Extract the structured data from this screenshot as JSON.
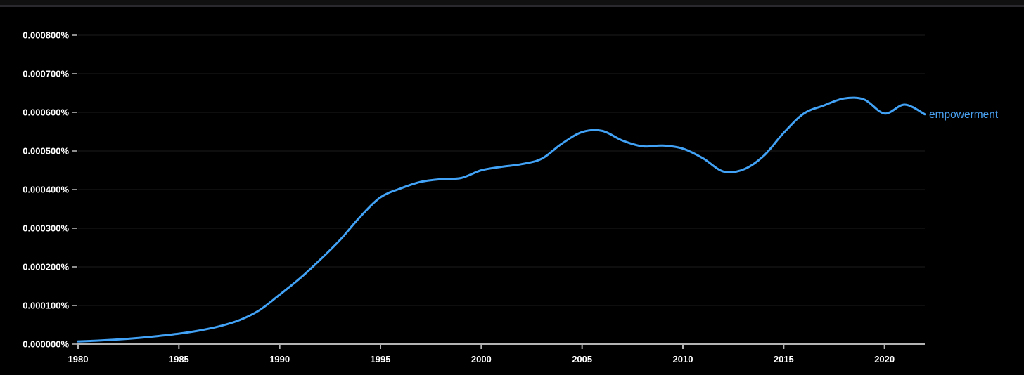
{
  "chart_data": {
    "type": "line",
    "title": "",
    "xlabel": "",
    "ylabel": "",
    "x_range": [
      1980,
      2022
    ],
    "y_range_percent": [
      0,
      0.0008
    ],
    "x_ticks": [
      1980,
      1985,
      1990,
      1995,
      2000,
      2005,
      2010,
      2015,
      2020
    ],
    "y_ticks_percent": [
      0,
      0.0001,
      0.0002,
      0.0003,
      0.0004,
      0.0005,
      0.0006,
      0.0007,
      0.0008
    ],
    "y_tick_labels": [
      "0.000000%",
      "0.000100%",
      "0.000200%",
      "0.000300%",
      "0.000400%",
      "0.000500%",
      "0.000600%",
      "0.000700%",
      "0.000800%"
    ],
    "grid": "horizontal-only",
    "legend_position": "right-end-of-line",
    "series": [
      {
        "name": "empowerment",
        "color": "#42a2f5",
        "x": [
          1980,
          1981,
          1982,
          1983,
          1984,
          1985,
          1986,
          1987,
          1988,
          1989,
          1990,
          1991,
          1992,
          1993,
          1994,
          1995,
          1996,
          1997,
          1998,
          1999,
          2000,
          2001,
          2002,
          2003,
          2004,
          2005,
          2006,
          2007,
          2008,
          2009,
          2010,
          2011,
          2012,
          2013,
          2014,
          2015,
          2016,
          2017,
          2018,
          2019,
          2020,
          2021,
          2022
        ],
        "y_percent": [
          7e-06,
          9e-06,
          1.2e-05,
          1.6e-05,
          2.1e-05,
          2.7e-05,
          3.5e-05,
          4.6e-05,
          6.2e-05,
          8.8e-05,
          0.000128,
          0.00017,
          0.000218,
          0.00027,
          0.00033,
          0.00038,
          0.000403,
          0.00042,
          0.000427,
          0.00043,
          0.00045,
          0.000459,
          0.000466,
          0.00048,
          0.000519,
          0.000549,
          0.000552,
          0.000527,
          0.000512,
          0.000514,
          0.000506,
          0.000481,
          0.000447,
          0.000452,
          0.000487,
          0.000547,
          0.000597,
          0.000618,
          0.000636,
          0.000633,
          0.000597,
          0.00062,
          0.000595
        ]
      }
    ]
  },
  "colors": {
    "background": "#000000",
    "gridline": "#1c1c1c",
    "axis": "#b3b3b3",
    "ytick_dash": "#8f8f8f",
    "tick_text": "#ffffff",
    "line": "#42a2f5",
    "series_label": "#4aa2f3",
    "top_edge_bar": "#101010",
    "top_edge_border": "#2a2a2e"
  }
}
